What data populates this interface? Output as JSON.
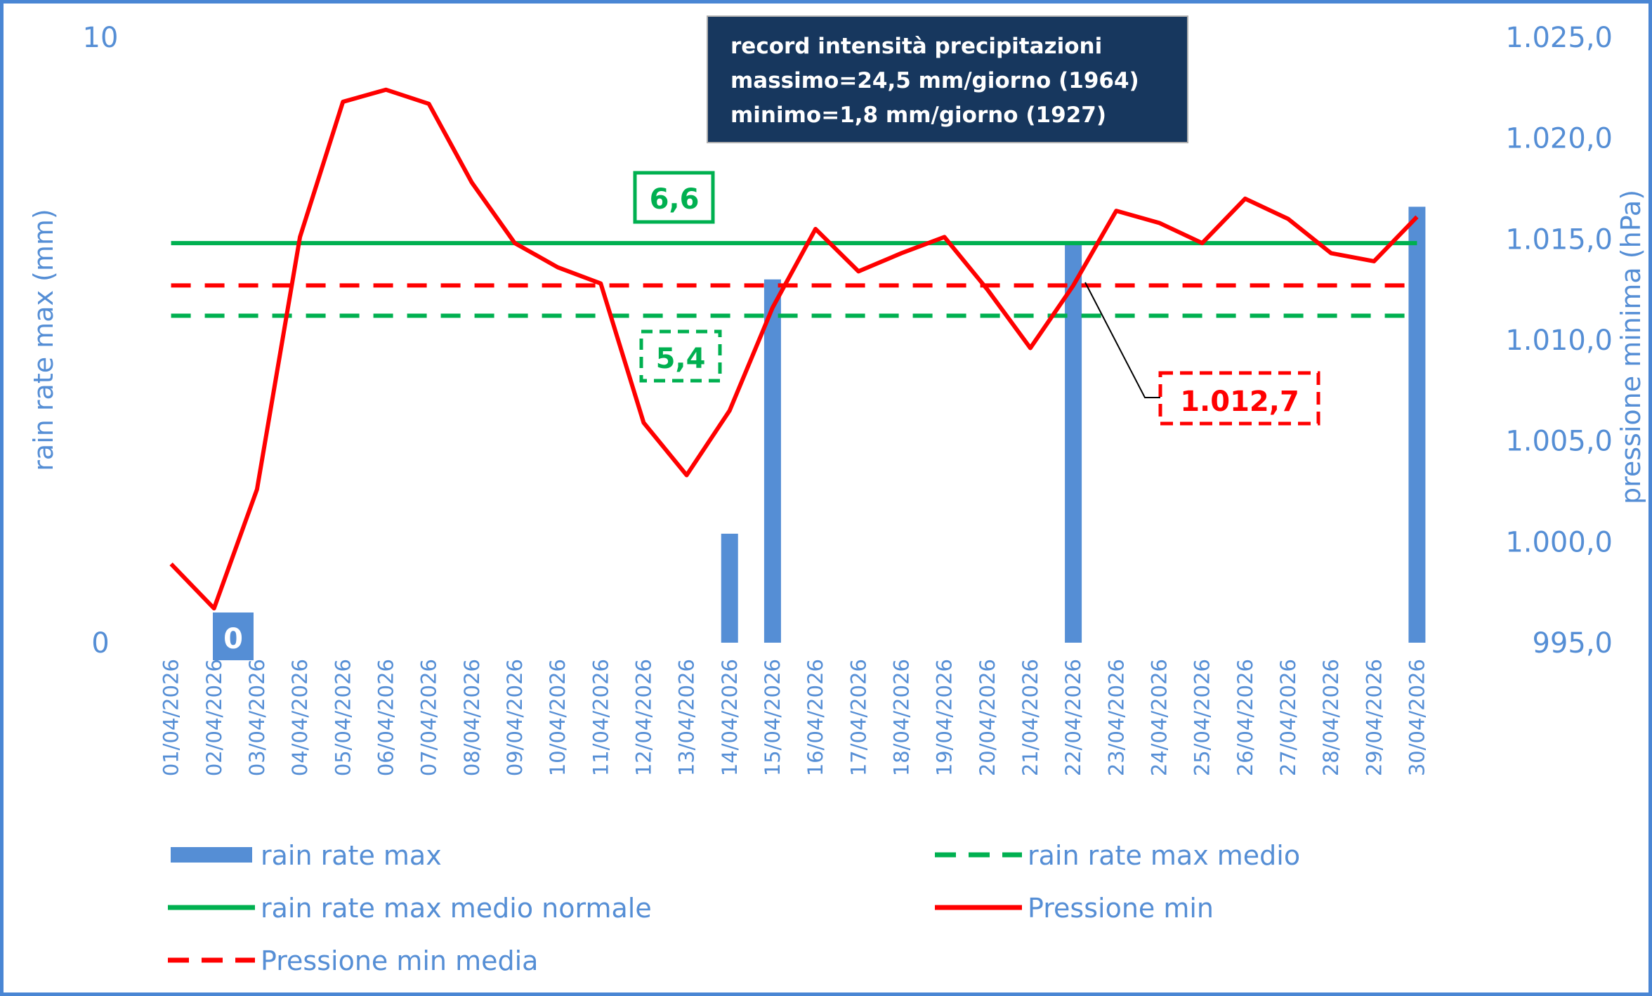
{
  "chart_data": {
    "type": "bar+line",
    "categories": [
      "01/04/2026",
      "02/04/2026",
      "03/04/2026",
      "04/04/2026",
      "05/04/2026",
      "06/04/2026",
      "07/04/2026",
      "08/04/2026",
      "09/04/2026",
      "10/04/2026",
      "11/04/2026",
      "12/04/2026",
      "13/04/2026",
      "14/04/2026",
      "15/04/2026",
      "16/04/2026",
      "17/04/2026",
      "18/04/2026",
      "19/04/2026",
      "20/04/2026",
      "21/04/2026",
      "22/04/2026",
      "23/04/2026",
      "24/04/2026",
      "25/04/2026",
      "26/04/2026",
      "27/04/2026",
      "28/04/2026",
      "29/04/2026",
      "30/04/2026"
    ],
    "ylabel_left": "rain rate max (mm)",
    "ylabel_right": "pressione minima (hPa)",
    "ylim_left": [
      0,
      10
    ],
    "ylim_right": [
      995,
      1025
    ],
    "left_ticks": [
      "0",
      "10"
    ],
    "right_ticks": [
      "995,0",
      "1.000,0",
      "1.005,0",
      "1.010,0",
      "1.015,0",
      "1.020,0",
      "1.025,0"
    ],
    "series": [
      {
        "name": "rain rate max",
        "kind": "bar",
        "axis": "left",
        "color": "#558ed5",
        "values": [
          0,
          0,
          0,
          0,
          0,
          0,
          0,
          0,
          0,
          0,
          0,
          0,
          0,
          1.8,
          6.0,
          0,
          0,
          0,
          0,
          0,
          0,
          6.6,
          0,
          0,
          0,
          0,
          0,
          0,
          0,
          7.2
        ]
      },
      {
        "name": "rain rate max medio",
        "kind": "hline-dashed",
        "axis": "left",
        "color": "#00b050",
        "value": 5.4
      },
      {
        "name": "rain rate max medio normale",
        "kind": "hline",
        "axis": "left",
        "color": "#00b050",
        "value": 6.6
      },
      {
        "name": "Pressione min",
        "kind": "line",
        "axis": "right",
        "color": "#ff0000",
        "values": [
          998.9,
          996.7,
          1002.6,
          1015.1,
          1021.8,
          1022.4,
          1021.7,
          1017.8,
          1014.8,
          1013.6,
          1012.8,
          1005.9,
          1003.3,
          1006.5,
          1011.6,
          1015.5,
          1013.4,
          1014.3,
          1015.1,
          1012.5,
          1009.6,
          1012.7,
          1016.4,
          1015.8,
          1014.8,
          1017.0,
          1016.0,
          1014.3,
          1013.9,
          1016.1
        ]
      },
      {
        "name": "Pressione min media",
        "kind": "hline-dashed",
        "axis": "right",
        "color": "#ff0000",
        "value": 1012.7
      }
    ],
    "data_labels": {
      "rain_max_day": "0",
      "medio_normale": "6,6",
      "medio": "5,4",
      "pressione_media": "1.012,7"
    },
    "info_box": {
      "lines": [
        "record intensità precipitazioni",
        "massimo=24,5 mm/giorno (1964)",
        "minimo=1,8 mm/giorno (1927)"
      ],
      "background": "#17375e"
    },
    "legend_position": "bottom",
    "grid": false
  }
}
